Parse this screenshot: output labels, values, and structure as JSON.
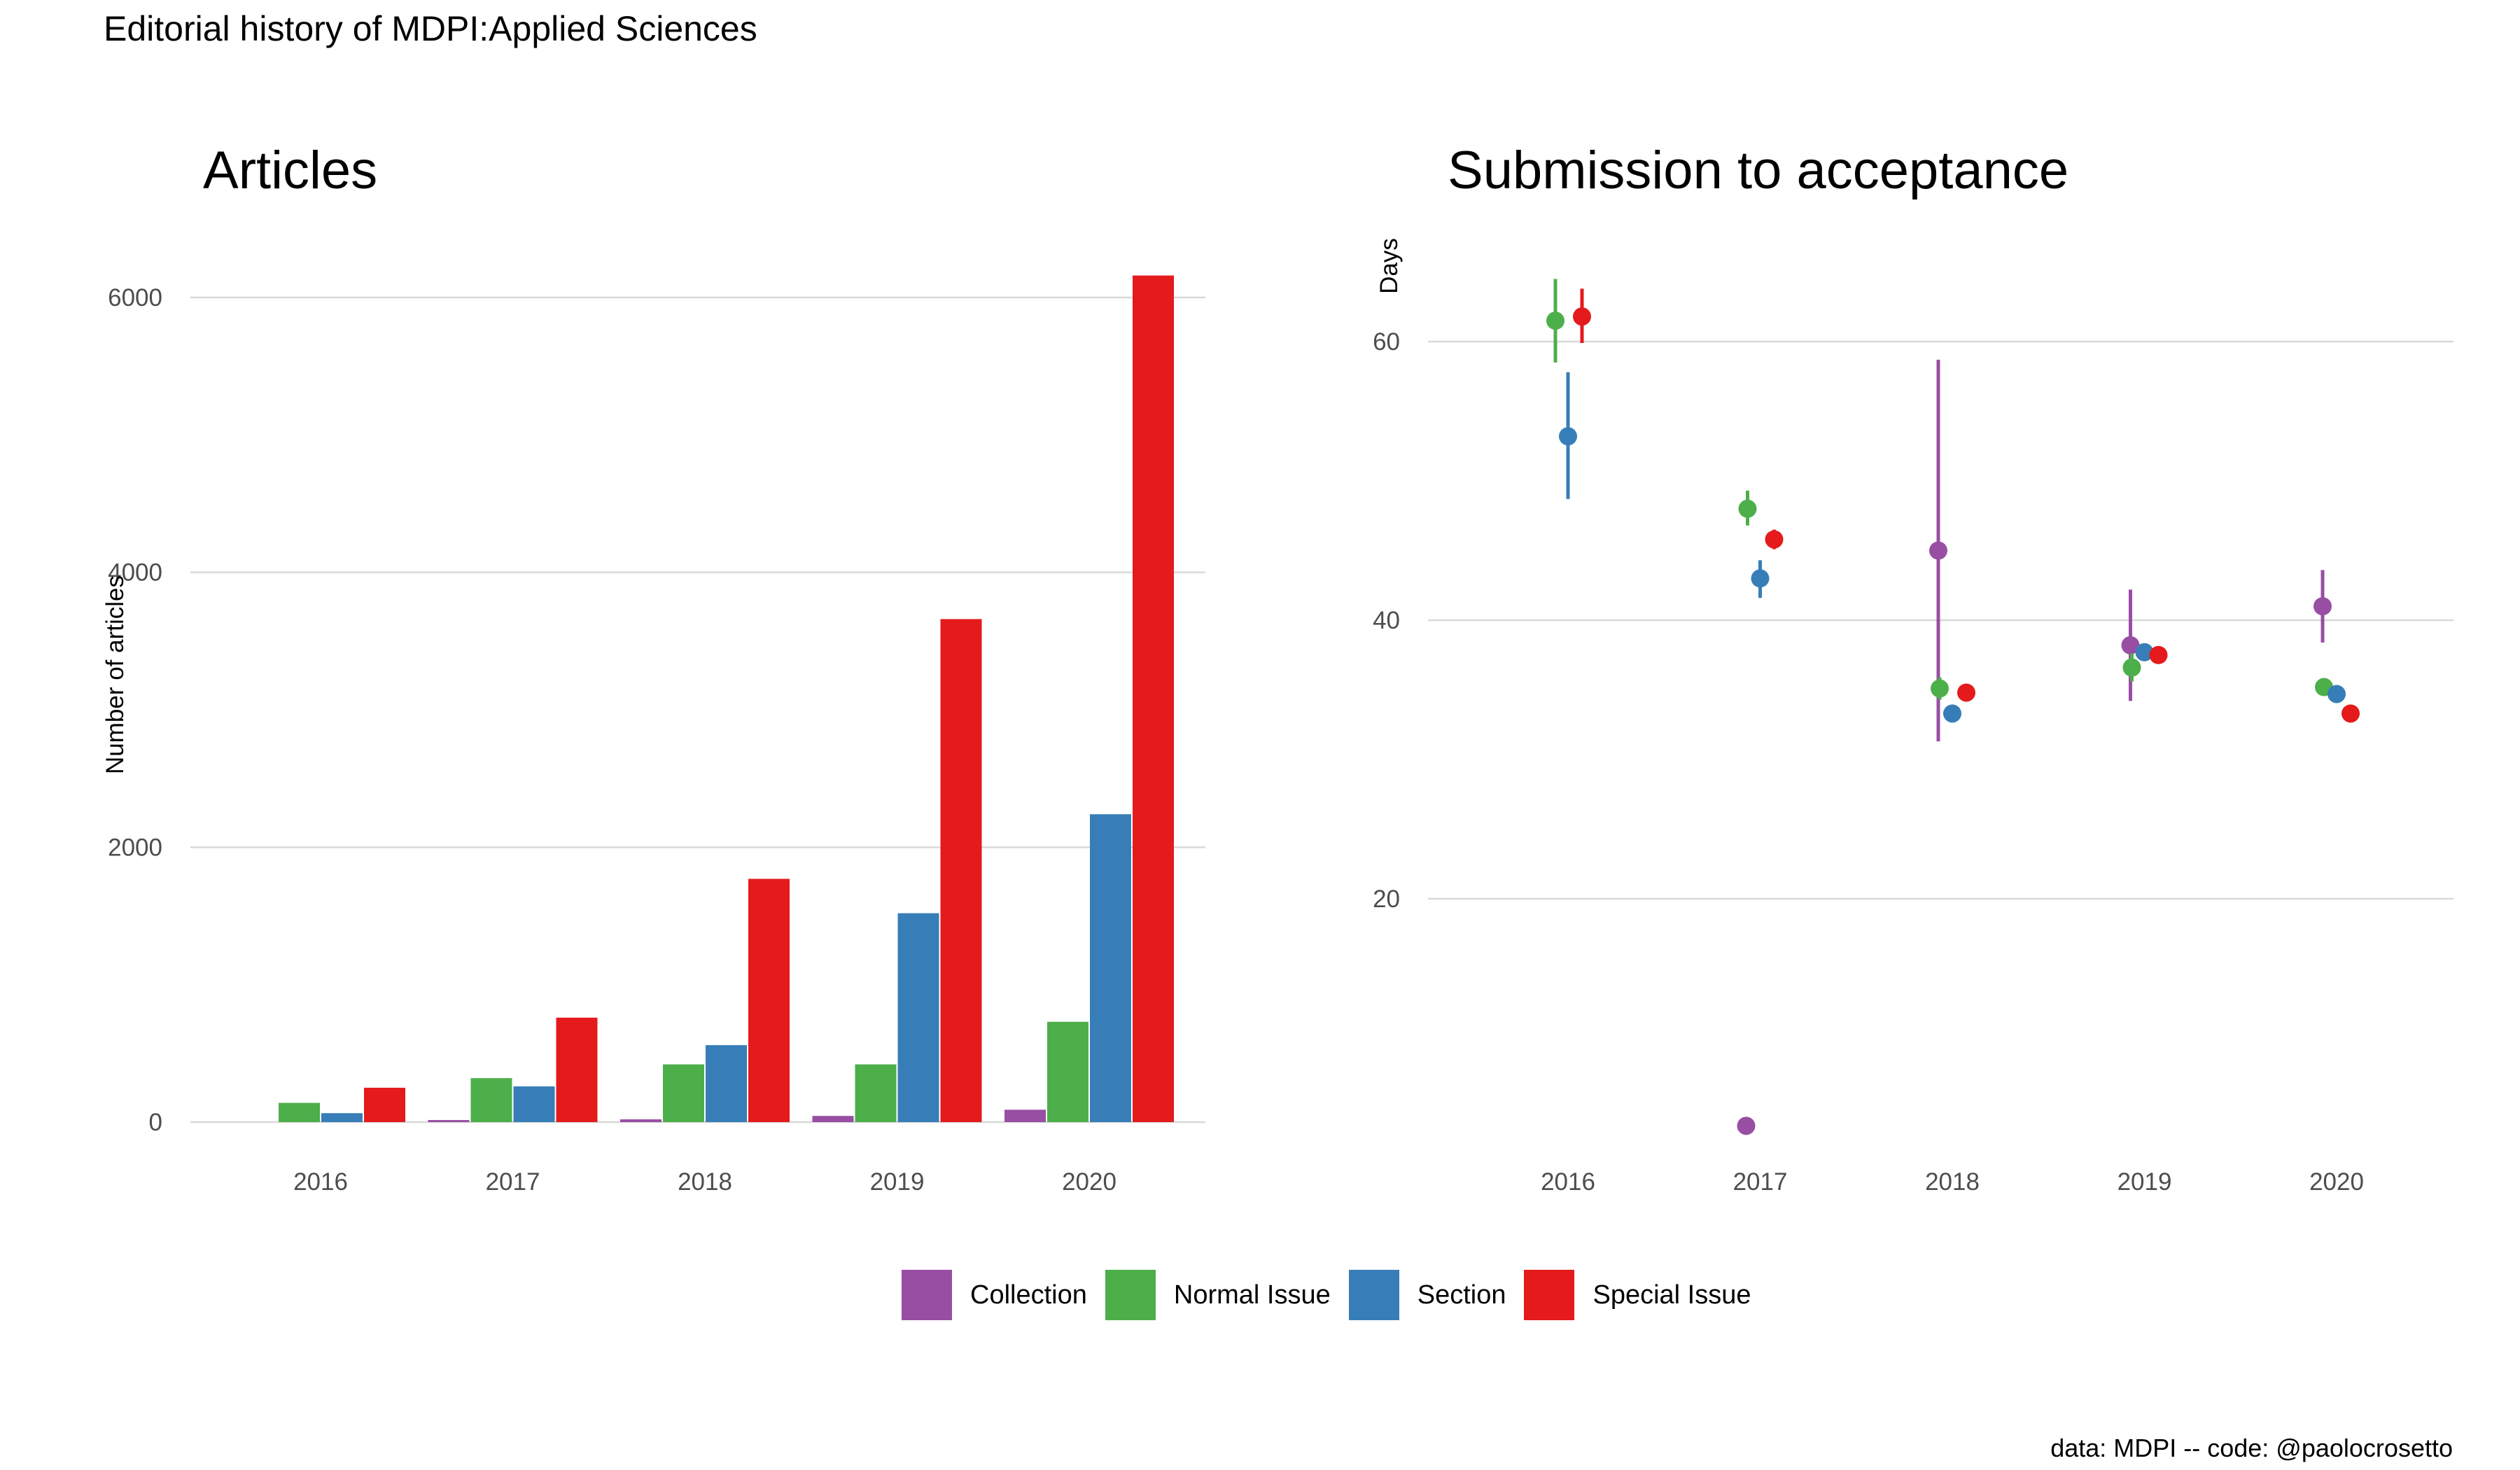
{
  "suptitle": "Editorial history of MDPI:Applied Sciences",
  "caption": "data: MDPI -- code: @paolocrosetto",
  "legend": [
    {
      "name": "Collection",
      "color": "#984EA3"
    },
    {
      "name": "Normal Issue",
      "color": "#4DAF4A"
    },
    {
      "name": "Section",
      "color": "#377EB8"
    },
    {
      "name": "Special Issue",
      "color": "#E41A1C"
    }
  ],
  "chart_data": [
    {
      "type": "bar",
      "title": "Articles",
      "ylabel": "Number of articles",
      "xlabel": "",
      "ylim": [
        0,
        6300
      ],
      "yticks": [
        "0",
        "2000",
        "4000",
        "6000"
      ],
      "categories": [
        "2016",
        "2017",
        "2018",
        "2019",
        "2020"
      ],
      "series": [
        {
          "name": "Collection",
          "values": [
            null,
            15,
            20,
            45,
            90
          ]
        },
        {
          "name": "Normal Issue",
          "values": [
            140,
            320,
            420,
            420,
            730
          ]
        },
        {
          "name": "Section",
          "values": [
            65,
            260,
            560,
            1520,
            2240
          ]
        },
        {
          "name": "Special Issue",
          "values": [
            250,
            760,
            1770,
            3660,
            6160
          ]
        }
      ],
      "grid": true,
      "legend": "bottom"
    },
    {
      "type": "scatter",
      "title": "Submission to acceptance",
      "ylabel": "Days",
      "xlabel": "",
      "ylim": [
        3,
        69
      ],
      "yticks": [
        "20",
        "40",
        "60"
      ],
      "categories": [
        "2016",
        "2017",
        "2018",
        "2019",
        "2020"
      ],
      "series": [
        {
          "name": "Collection",
          "values": [
            null,
            3.7,
            45,
            38.2,
            41
          ],
          "lower": [
            null,
            null,
            31.3,
            34.2,
            38.4
          ],
          "upper": [
            null,
            null,
            58.7,
            42.2,
            43.6
          ]
        },
        {
          "name": "Normal Issue",
          "values": [
            61.5,
            48,
            35.1,
            36.6,
            35.2
          ],
          "lower": [
            58.5,
            46.8,
            34.3,
            35.6,
            34.6
          ],
          "upper": [
            64.5,
            49.3,
            35.9,
            37.6,
            35.8
          ]
        },
        {
          "name": "Section",
          "values": [
            53.2,
            43,
            33.3,
            37.7,
            34.7
          ],
          "lower": [
            48.7,
            41.6,
            32.8,
            37.1,
            34.2
          ],
          "upper": [
            57.8,
            44.3,
            33.8,
            38.3,
            35.2
          ]
        },
        {
          "name": "Special Issue",
          "values": [
            61.8,
            45.8,
            34.8,
            37.5,
            33.3
          ],
          "lower": [
            59.9,
            45.1,
            34.3,
            37.1,
            32.8
          ],
          "upper": [
            63.8,
            46.5,
            35.3,
            37.9,
            33.8
          ]
        }
      ],
      "grid": true,
      "legend": "bottom"
    }
  ]
}
